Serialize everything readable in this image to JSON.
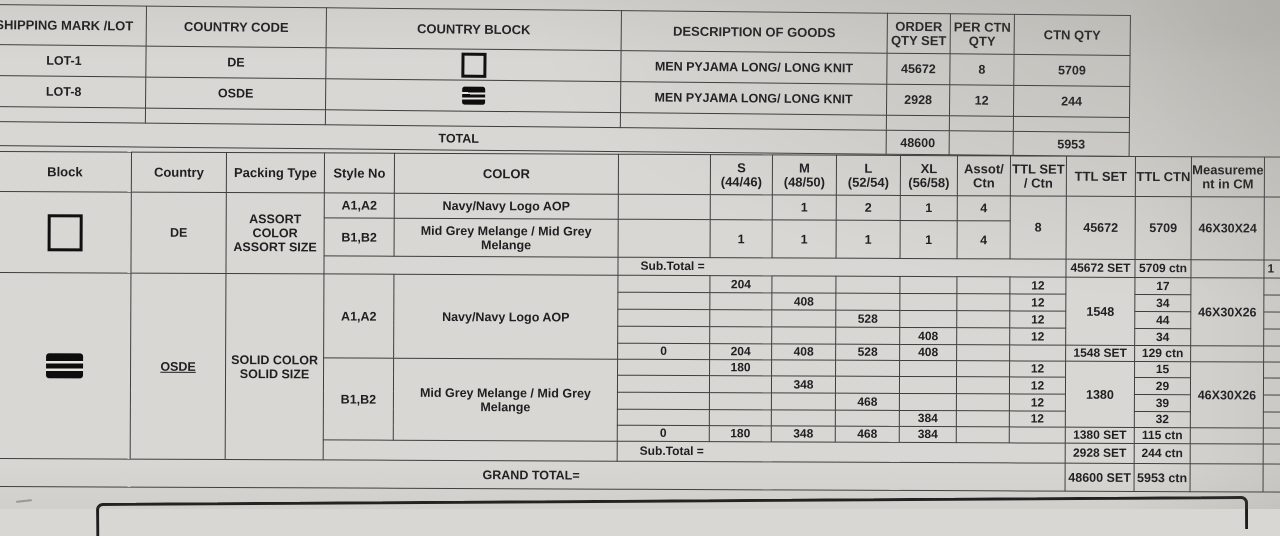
{
  "colors": {
    "paper": "#d8d7d3",
    "ink": "#1f1f22",
    "line": "#3e3e3e"
  },
  "table1": {
    "headers": {
      "shipping_mark": "SHIPPING MARK /LOT",
      "country_code": "COUNTRY CODE",
      "country_block": "COUNTRY BLOCK",
      "description": "DESCRIPTION OF GOODS",
      "order_qty_line1": "ORDER",
      "order_qty_line2": "QTY SET",
      "per_ctn_line1": "PER CTN",
      "per_ctn_line2": "QTY",
      "ctn_qty": "CTN QTY"
    },
    "rows": [
      {
        "lot": "LOT-1",
        "code": "DE",
        "block_icon": "square-outline",
        "description": "MEN PYJAMA LONG/ LONG KNIT",
        "order": "45672",
        "per_ctn": "8",
        "ctn": "5709"
      },
      {
        "lot": "LOT-8",
        "code": "OSDE",
        "block_icon": "striped-box",
        "description": "MEN PYJAMA LONG/ LONG KNIT",
        "order": "2928",
        "per_ctn": "12",
        "ctn": "244"
      }
    ],
    "total": {
      "label": "TOTAL",
      "order": "48600",
      "ctn": "5953"
    }
  },
  "table2": {
    "headers": {
      "block": "Block",
      "country": "Country",
      "packing": "Packing Type",
      "style": "Style No",
      "color": "COLOR",
      "s1": "S",
      "s2": "(44/46)",
      "m1": "M",
      "m2": "(48/50)",
      "l1": "L",
      "l2": "(52/54)",
      "xl1": "XL",
      "xl2": "(56/58)",
      "assot1": "Assot/",
      "assot2": "Ctn",
      "ttl_set_ctn1": "TTL SET",
      "ttl_set_ctn2": "/ Ctn",
      "ttl_set": "TTL SET",
      "ttl_ctn": "TTL CTN",
      "meas1": "Measureme",
      "meas2": "nt in CM"
    },
    "de": {
      "block_icon": "square-outline",
      "country": "DE",
      "packing": [
        "ASSORT",
        "COLOR",
        "ASSORT SIZE"
      ],
      "row_a": {
        "style": "A1,A2",
        "color": "Navy/Navy Logo AOP",
        "s": "",
        "m": "1",
        "l": "2",
        "xl": "1",
        "assot": "4"
      },
      "row_b": {
        "style": "B1,B2",
        "color": "Mid Grey Melange / Mid Grey Melange",
        "s": "1",
        "m": "1",
        "l": "1",
        "xl": "1",
        "assot": "4"
      },
      "ttl_set_ctn": "8",
      "ttl_set": "45672",
      "ttl_ctn": "5709",
      "measurement": "46X30X24",
      "subtotal": {
        "label": "Sub.Total =",
        "set": "45672 SET",
        "ctn": "5709 ctn",
        "edge_partial": "1"
      }
    },
    "osde": {
      "block_icon": "striped-box",
      "country": "OSDE",
      "packing": [
        "SOLID COLOR",
        "SOLID SIZE"
      ],
      "group_a": {
        "style": "A1,A2",
        "color": "Navy/Navy Logo AOP",
        "ttl_set": "1548",
        "measurement": "46X30X26",
        "rows": [
          {
            "s": "204",
            "m": "",
            "l": "",
            "xl": "",
            "per": "12",
            "ctn": "17"
          },
          {
            "s": "",
            "m": "408",
            "l": "",
            "xl": "",
            "per": "12",
            "ctn": "34"
          },
          {
            "s": "",
            "m": "",
            "l": "528",
            "xl": "",
            "per": "12",
            "ctn": "44"
          },
          {
            "s": "",
            "m": "",
            "l": "",
            "xl": "408",
            "per": "12",
            "ctn": "34"
          }
        ],
        "sum": {
          "zero": "0",
          "s": "204",
          "m": "408",
          "l": "528",
          "xl": "408",
          "set": "1548 SET",
          "ctn": "129 ctn"
        }
      },
      "group_b": {
        "style": "B1,B2",
        "color": "Mid Grey Melange / Mid Grey Melange",
        "ttl_set": "1380",
        "measurement": "46X30X26",
        "rows": [
          {
            "s": "180",
            "m": "",
            "l": "",
            "xl": "",
            "per": "12",
            "ctn": "15"
          },
          {
            "s": "",
            "m": "348",
            "l": "",
            "xl": "",
            "per": "12",
            "ctn": "29"
          },
          {
            "s": "",
            "m": "",
            "l": "468",
            "xl": "",
            "per": "12",
            "ctn": "39"
          },
          {
            "s": "",
            "m": "",
            "l": "",
            "xl": "384",
            "per": "12",
            "ctn": "32"
          }
        ],
        "sum": {
          "zero": "0",
          "s": "180",
          "m": "348",
          "l": "468",
          "xl": "384",
          "set": "1380 SET",
          "ctn": "115 ctn"
        }
      },
      "subtotal": {
        "label": "Sub.Total =",
        "set": "2928 SET",
        "ctn": "244 ctn"
      }
    },
    "grand": {
      "label": "GRAND TOTAL=",
      "set": "48600 SET",
      "ctn": "5953 ctn"
    }
  }
}
